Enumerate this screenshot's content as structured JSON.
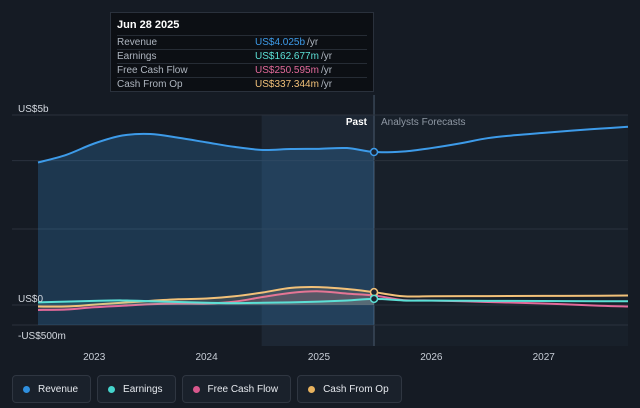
{
  "tooltip": {
    "date": "Jun 28 2025",
    "rows": [
      {
        "label": "Revenue",
        "value": "US$4.025b",
        "unit": "/yr",
        "color": "#3d9be9"
      },
      {
        "label": "Earnings",
        "value": "US$162.677m",
        "unit": "/yr",
        "color": "#5ce0d6"
      },
      {
        "label": "Free Cash Flow",
        "value": "US$250.595m",
        "unit": "/yr",
        "color": "#e36a9a"
      },
      {
        "label": "Cash From Op",
        "value": "US$337.344m",
        "unit": "/yr",
        "color": "#f2c179"
      }
    ]
  },
  "labels": {
    "past": "Past",
    "forecast": "Analysts Forecasts"
  },
  "legend": [
    {
      "label": "Revenue",
      "color": "#2f8fde"
    },
    {
      "label": "Earnings",
      "color": "#45d4cc"
    },
    {
      "label": "Free Cash Flow",
      "color": "#d8578c"
    },
    {
      "label": "Cash From Op",
      "color": "#e8b25e"
    }
  ],
  "chart_data": {
    "type": "area",
    "y_unit": "US$ millions",
    "ylim": [
      -500,
      5000
    ],
    "y_ticks": [
      {
        "value": 5000,
        "label": "US$5b"
      },
      {
        "value": 0,
        "label": "US$0"
      },
      {
        "value": -500,
        "label": "-US$500m"
      }
    ],
    "x_ticks": [
      "2023",
      "2024",
      "2025",
      "2026",
      "2027"
    ],
    "xlim": [
      2022.5,
      2027.75
    ],
    "past_end": 2025.49,
    "shade_start": 2024.49,
    "series": [
      {
        "name": "Revenue",
        "color": "#3d9be9",
        "points": [
          [
            2022.5,
            3750
          ],
          [
            2022.75,
            3950
          ],
          [
            2023.0,
            4250
          ],
          [
            2023.25,
            4460
          ],
          [
            2023.5,
            4500
          ],
          [
            2023.75,
            4400
          ],
          [
            2024.0,
            4280
          ],
          [
            2024.25,
            4160
          ],
          [
            2024.5,
            4080
          ],
          [
            2024.75,
            4105
          ],
          [
            2025.0,
            4110
          ],
          [
            2025.25,
            4130
          ],
          [
            2025.49,
            4025
          ],
          [
            2025.75,
            4040
          ],
          [
            2026.0,
            4130
          ],
          [
            2026.25,
            4250
          ],
          [
            2026.5,
            4390
          ],
          [
            2026.75,
            4470
          ],
          [
            2027.0,
            4530
          ],
          [
            2027.25,
            4590
          ],
          [
            2027.5,
            4640
          ],
          [
            2027.75,
            4690
          ]
        ]
      },
      {
        "name": "Earnings",
        "color": "#5ce0d6",
        "points": [
          [
            2022.5,
            70
          ],
          [
            2022.75,
            90
          ],
          [
            2023.0,
            110
          ],
          [
            2023.25,
            120
          ],
          [
            2023.5,
            100
          ],
          [
            2023.75,
            80
          ],
          [
            2024.0,
            60
          ],
          [
            2024.25,
            50
          ],
          [
            2024.5,
            60
          ],
          [
            2024.75,
            70
          ],
          [
            2025.0,
            90
          ],
          [
            2025.25,
            120
          ],
          [
            2025.49,
            162.7
          ],
          [
            2025.75,
            120
          ],
          [
            2026.0,
            115
          ],
          [
            2026.5,
            110
          ],
          [
            2027.0,
            105
          ],
          [
            2027.5,
            100
          ],
          [
            2027.75,
            100
          ]
        ]
      },
      {
        "name": "Free Cash Flow",
        "color": "#e36a9a",
        "points": [
          [
            2022.5,
            -130
          ],
          [
            2022.75,
            -120
          ],
          [
            2023.0,
            -60
          ],
          [
            2023.25,
            -20
          ],
          [
            2023.5,
            20
          ],
          [
            2023.75,
            40
          ],
          [
            2024.0,
            40
          ],
          [
            2024.25,
            90
          ],
          [
            2024.5,
            210
          ],
          [
            2024.75,
            320
          ],
          [
            2025.0,
            360
          ],
          [
            2025.25,
            300
          ],
          [
            2025.49,
            250.6
          ],
          [
            2025.75,
            130
          ],
          [
            2026.0,
            120
          ],
          [
            2026.5,
            80
          ],
          [
            2027.0,
            40
          ],
          [
            2027.5,
            -20
          ],
          [
            2027.75,
            -40
          ]
        ]
      },
      {
        "name": "Cash From Op",
        "color": "#f2c179",
        "points": [
          [
            2022.5,
            -40
          ],
          [
            2022.75,
            -40
          ],
          [
            2023.0,
            10
          ],
          [
            2023.25,
            60
          ],
          [
            2023.5,
            110
          ],
          [
            2023.75,
            150
          ],
          [
            2024.0,
            170
          ],
          [
            2024.25,
            230
          ],
          [
            2024.5,
            330
          ],
          [
            2024.75,
            450
          ],
          [
            2025.0,
            470
          ],
          [
            2025.25,
            420
          ],
          [
            2025.49,
            337.3
          ],
          [
            2025.75,
            230
          ],
          [
            2026.0,
            230
          ],
          [
            2026.5,
            235
          ],
          [
            2027.0,
            240
          ],
          [
            2027.5,
            245
          ],
          [
            2027.75,
            250
          ]
        ]
      }
    ]
  }
}
